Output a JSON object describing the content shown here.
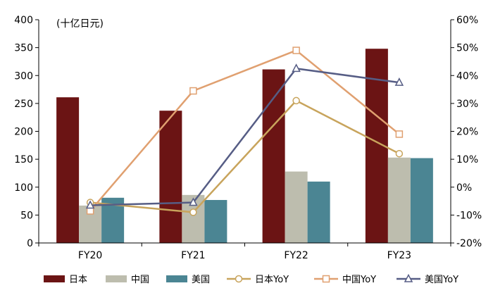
{
  "chart_data": {
    "type": "bar",
    "unit_label": "(十亿日元)",
    "categories": [
      "FY20",
      "FY21",
      "FY22",
      "FY23"
    ],
    "y_left": {
      "min": 0,
      "max": 400,
      "ticks": [
        0,
        50,
        100,
        150,
        200,
        250,
        300,
        350,
        400
      ]
    },
    "y_right": {
      "min": -20,
      "max": 60,
      "ticks": [
        -20,
        -10,
        0,
        10,
        20,
        30,
        40,
        50,
        60
      ],
      "tick_format": "percent"
    },
    "grid": false,
    "legend_position": "bottom",
    "bar_series": [
      {
        "name": "日本",
        "color": "#6b1414",
        "values": [
          261,
          237,
          311,
          348
        ]
      },
      {
        "name": "中国",
        "color": "#bdbdae",
        "values": [
          67,
          86,
          128,
          153
        ]
      },
      {
        "name": "美国",
        "color": "#4b8593",
        "values": [
          81,
          77,
          110,
          152
        ]
      }
    ],
    "line_series": [
      {
        "name": "日本YoY",
        "color": "#c8a45c",
        "marker": "circle",
        "values": [
          -5.5,
          -9.0,
          31.0,
          12.0
        ]
      },
      {
        "name": "中国YoY",
        "color": "#e0a070",
        "marker": "square",
        "values": [
          -8.5,
          34.5,
          49.0,
          19.0
        ]
      },
      {
        "name": "美国YoY",
        "color": "#565d85",
        "marker": "triangle",
        "values": [
          -6.5,
          -5.5,
          42.5,
          37.5
        ]
      }
    ]
  }
}
